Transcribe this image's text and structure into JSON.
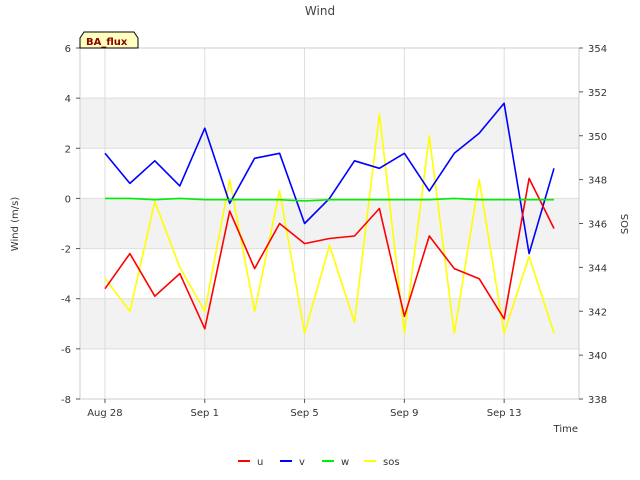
{
  "chart_data": {
    "type": "line",
    "title": "Wind",
    "badge": "BA_flux",
    "xlabel": "Time",
    "ylabel": "Wind (m/s)",
    "y2label": "SOS",
    "x_range": [
      "Aug 27",
      "Sep 16"
    ],
    "ylim": [
      -8,
      6
    ],
    "y2lim": [
      338,
      354
    ],
    "yticks": [
      -8,
      -6,
      -4,
      -2,
      0,
      2,
      4,
      6
    ],
    "y2ticks": [
      338,
      340,
      342,
      344,
      346,
      348,
      350,
      352,
      354
    ],
    "xticks": [
      {
        "label": "Aug 28",
        "date": "Aug 28"
      },
      {
        "label": "Sep 1",
        "date": "Sep 1"
      },
      {
        "label": "Sep 5",
        "date": "Sep 5"
      },
      {
        "label": "Sep 9",
        "date": "Sep 9"
      },
      {
        "label": "Sep 13",
        "date": "Sep 13"
      }
    ],
    "x_dates": [
      "Aug 28",
      "Aug 29",
      "Aug 30",
      "Aug 31",
      "Sep 1",
      "Sep 2",
      "Sep 3",
      "Sep 4",
      "Sep 5",
      "Sep 6",
      "Sep 7",
      "Sep 8",
      "Sep 9",
      "Sep 10",
      "Sep 11",
      "Sep 12",
      "Sep 13",
      "Sep 14",
      "Sep 15"
    ],
    "grid": true,
    "shaded_bands": true,
    "legend_position": "bottom-center",
    "series": [
      {
        "name": "u",
        "axis": "left",
        "color": "#ff0000",
        "values": [
          -3.6,
          -2.2,
          -3.9,
          -3.0,
          -5.2,
          -0.5,
          -2.8,
          -1.0,
          -1.8,
          -1.6,
          -1.5,
          -0.4,
          -4.7,
          -1.5,
          -2.8,
          -3.2,
          -4.8,
          0.8,
          -1.2
        ]
      },
      {
        "name": "v",
        "axis": "left",
        "color": "#0000ff",
        "values": [
          1.8,
          0.6,
          1.5,
          0.5,
          2.8,
          -0.2,
          1.6,
          1.8,
          -1.0,
          0.0,
          1.5,
          1.2,
          1.8,
          0.3,
          1.8,
          2.6,
          3.8,
          -2.2,
          1.2
        ]
      },
      {
        "name": "w",
        "axis": "left",
        "color": "#00ee00",
        "values": [
          0.0,
          0.0,
          -0.05,
          0.0,
          -0.05,
          -0.05,
          -0.05,
          -0.05,
          -0.1,
          -0.05,
          -0.05,
          -0.05,
          -0.05,
          -0.05,
          0.0,
          -0.05,
          -0.05,
          -0.05,
          -0.05
        ]
      },
      {
        "name": "sos",
        "axis": "right",
        "color": "#ffff00",
        "values": [
          343.5,
          342.0,
          347.0,
          344.0,
          342.0,
          348.0,
          342.0,
          347.5,
          341.0,
          345.0,
          341.5,
          351.0,
          341.0,
          350.0,
          341.0,
          348.0,
          341.0,
          344.5,
          341.0
        ]
      }
    ]
  }
}
